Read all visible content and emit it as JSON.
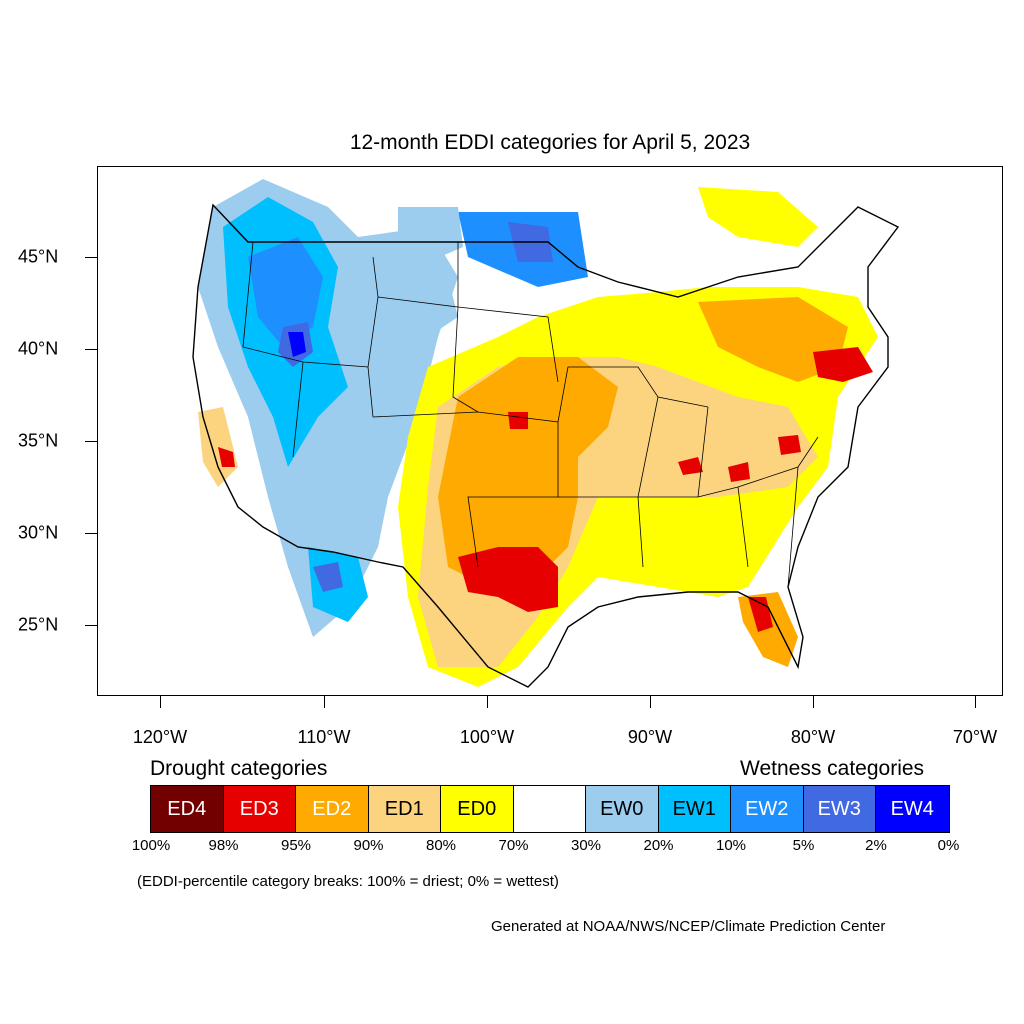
{
  "title": "12-month EDDI categories for April 5, 2023",
  "map": {
    "lat_labels": [
      {
        "value": "45°N",
        "deg": 45
      },
      {
        "value": "40°N",
        "deg": 40
      },
      {
        "value": "35°N",
        "deg": 35
      },
      {
        "value": "30°N",
        "deg": 30
      },
      {
        "value": "25°N",
        "deg": 25
      }
    ],
    "lon_labels": [
      {
        "value": "120°W",
        "deg": -120
      },
      {
        "value": "110°W",
        "deg": -110
      },
      {
        "value": "100°W",
        "deg": -100
      },
      {
        "value": "90°W",
        "deg": -90
      },
      {
        "value": "80°W",
        "deg": -80
      },
      {
        "value": "70°W",
        "deg": -70
      }
    ]
  },
  "legend": {
    "drought_heading": "Drought categories",
    "wetness_heading": "Wetness categories",
    "categories": [
      {
        "label": "ED4",
        "color": "#730000",
        "text_color": "#ffffff"
      },
      {
        "label": "ED3",
        "color": "#e60000",
        "text_color": "#ffffff"
      },
      {
        "label": "ED2",
        "color": "#ffaa00",
        "text_color": "#ffffff"
      },
      {
        "label": "ED1",
        "color": "#fcd37f",
        "text_color": "#000000"
      },
      {
        "label": "ED0",
        "color": "#ffff00",
        "text_color": "#000000"
      },
      {
        "label": "",
        "color": "#ffffff",
        "text_color": "#000000"
      },
      {
        "label": "EW0",
        "color": "#9ccdee",
        "text_color": "#000000"
      },
      {
        "label": "EW1",
        "color": "#00bfff",
        "text_color": "#000000"
      },
      {
        "label": "EW2",
        "color": "#1e8fff",
        "text_color": "#ffffff"
      },
      {
        "label": "EW3",
        "color": "#4169e1",
        "text_color": "#ffffff"
      },
      {
        "label": "EW4",
        "color": "#0000ff",
        "text_color": "#ffffff"
      }
    ],
    "percentiles": [
      "100%",
      "98%",
      "95%",
      "90%",
      "80%",
      "70%",
      "30%",
      "20%",
      "10%",
      "5%",
      "2%",
      "0%"
    ]
  },
  "note": "(EDDI-percentile category breaks: 100% = driest; 0% = wettest)",
  "credit": "Generated at NOAA/NWS/NCEP/Climate Prediction Center"
}
